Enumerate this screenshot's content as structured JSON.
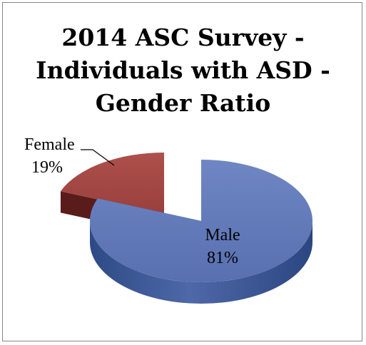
{
  "chart_data": {
    "type": "pie",
    "title_lines": [
      "2014 ASC Survey -",
      "Individuals with ASD -",
      "Gender Ratio"
    ],
    "categories": [
      "Male",
      "Female"
    ],
    "values": [
      81,
      19
    ],
    "unit": "%",
    "data_labels": [
      {
        "category": "Male",
        "value": "81%"
      },
      {
        "category": "Female",
        "value": "19%"
      }
    ],
    "style": "3d-exploded",
    "legend": "none",
    "colors": {
      "Male": "#5B74B4",
      "Female": "#A0423F"
    }
  }
}
